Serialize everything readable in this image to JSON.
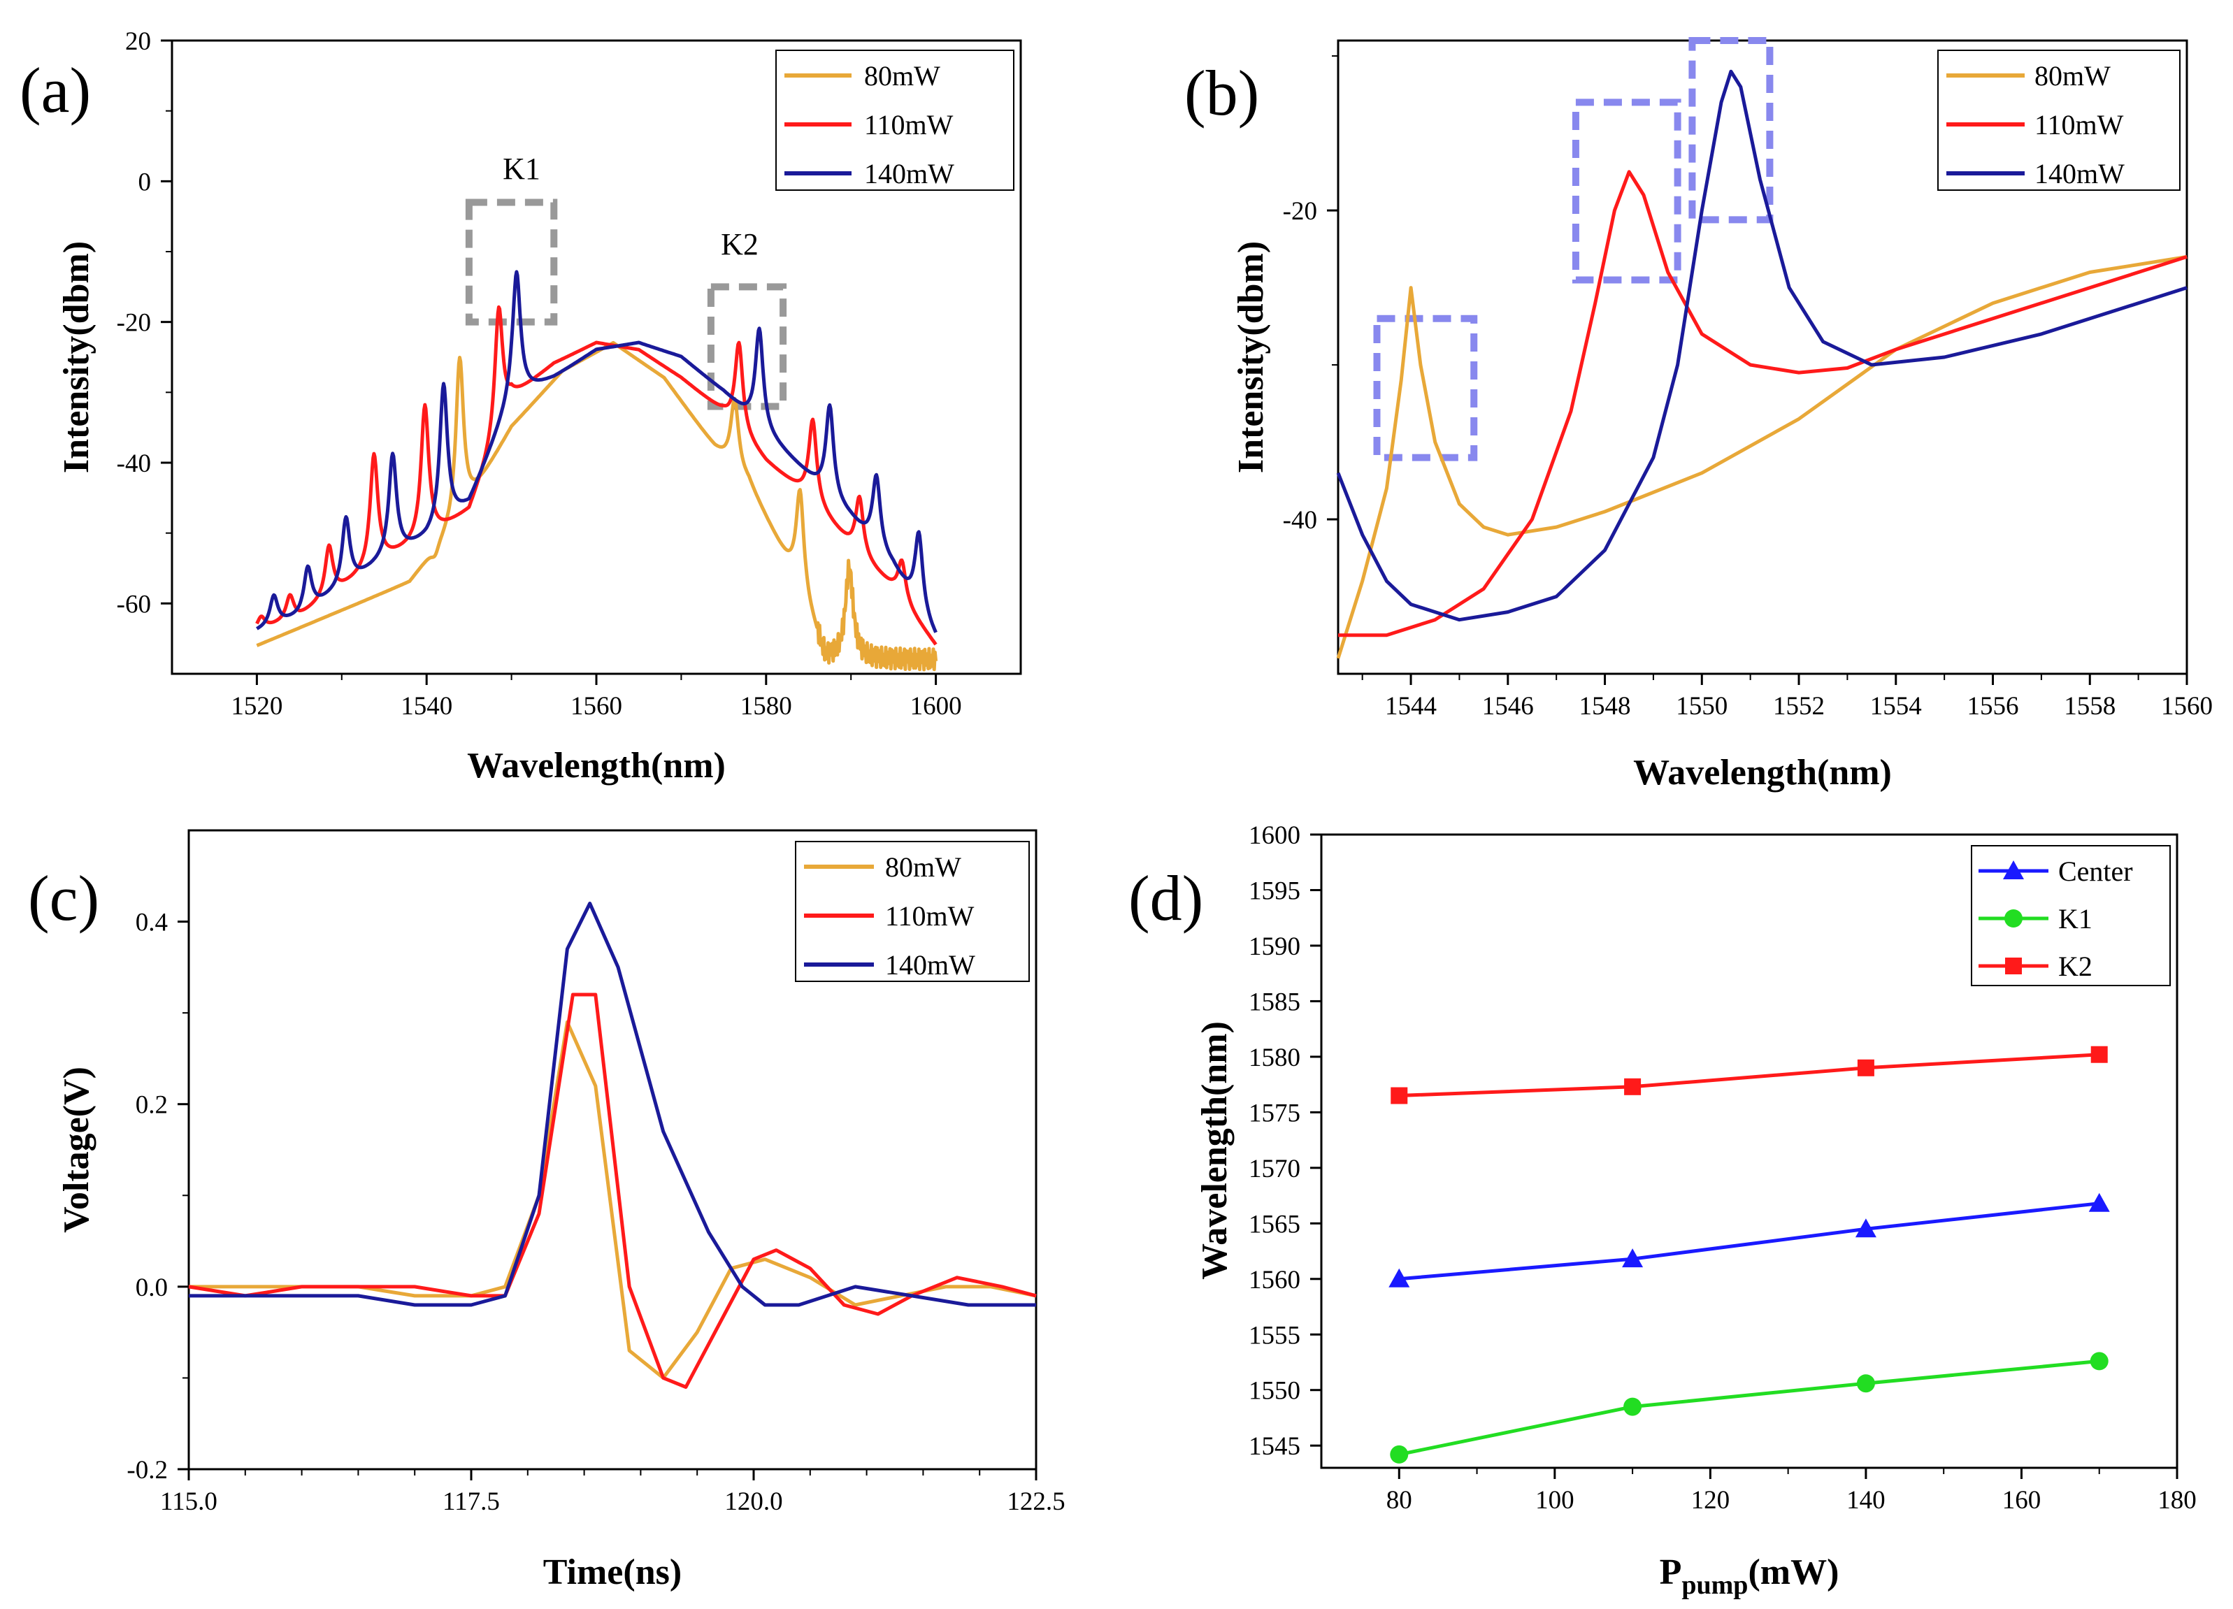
{
  "colors": {
    "p80": "#e8a838",
    "p110": "#ff1a1a",
    "p140": "#1a1a99",
    "center": "#1a1aff",
    "k1": "#22dd22",
    "k2": "#ff1a1a",
    "box_gray": "#999999",
    "box_blue": "#8888ee"
  },
  "chart_data": [
    {
      "panel": "(a)",
      "type": "line",
      "xlabel": "Wavelength(nm)",
      "ylabel": "Intensity(dbm)",
      "xlim": [
        1510,
        1610
      ],
      "ylim": [
        -70,
        20
      ],
      "xticks": [
        1520,
        1540,
        1560,
        1580,
        1600
      ],
      "yticks": [
        20,
        0,
        -20,
        -40,
        -60
      ],
      "legend": [
        "80mW",
        "110mW",
        "140mW"
      ],
      "legend_position": "top-right",
      "annotations": [
        {
          "text": "K1",
          "box": {
            "x": [
              1545,
              1555
            ],
            "y": [
              -20,
              -3
            ]
          }
        },
        {
          "text": "K2",
          "box": {
            "x": [
              1573.5,
              1582
            ],
            "y": [
              -32,
              -15
            ]
          }
        }
      ],
      "series": [
        {
          "name": "80mW",
          "envelope": [
            [
              1520,
              -66
            ],
            [
              1530,
              -61
            ],
            [
              1538,
              -57
            ],
            [
              1544,
              -48
            ],
            [
              1550,
              -35
            ],
            [
              1556,
              -27
            ],
            [
              1562,
              -23
            ],
            [
              1568,
              -28
            ],
            [
              1574,
              -38
            ],
            [
              1578,
              -43
            ],
            [
              1584,
              -58
            ],
            [
              1587,
              -68
            ],
            [
              1590,
              -68
            ],
            [
              1600,
              -68
            ]
          ],
          "peaks": [
            [
              1541,
              -54
            ],
            [
              1543.9,
              -25
            ],
            [
              1576.3,
              -31
            ],
            [
              1584,
              -44
            ],
            [
              1589.8,
              -55
            ]
          ]
        },
        {
          "name": "110mW",
          "envelope": [
            [
              1520,
              -64
            ],
            [
              1525,
              -62
            ],
            [
              1530,
              -58
            ],
            [
              1535,
              -54
            ],
            [
              1540,
              -51
            ],
            [
              1545,
              -47
            ],
            [
              1550,
              -31
            ],
            [
              1555,
              -26
            ],
            [
              1560,
              -23
            ],
            [
              1565,
              -24
            ],
            [
              1570,
              -28
            ],
            [
              1575,
              -33
            ],
            [
              1580,
              -40
            ],
            [
              1585,
              -45
            ],
            [
              1590,
              -52
            ],
            [
              1595,
              -58
            ],
            [
              1600,
              -66
            ]
          ],
          "peaks": [
            [
              1520.5,
              -62
            ],
            [
              1523.9,
              -59
            ],
            [
              1528.5,
              -52
            ],
            [
              1533.8,
              -39
            ],
            [
              1539.8,
              -32
            ],
            [
              1548.5,
              -18
            ],
            [
              1576.8,
              -23
            ],
            [
              1585.5,
              -34
            ],
            [
              1591,
              -45
            ],
            [
              1596,
              -54
            ]
          ]
        },
        {
          "name": "140mW",
          "envelope": [
            [
              1520,
              -64
            ],
            [
              1525,
              -62
            ],
            [
              1530,
              -58
            ],
            [
              1535,
              -54
            ],
            [
              1540,
              -51
            ],
            [
              1545,
              -46
            ],
            [
              1550,
              -31
            ],
            [
              1555,
              -28
            ],
            [
              1560,
              -24
            ],
            [
              1565,
              -23
            ],
            [
              1570,
              -25
            ],
            [
              1575,
              -30
            ],
            [
              1580,
              -36
            ],
            [
              1585,
              -42
            ],
            [
              1590,
              -48
            ],
            [
              1595,
              -55
            ],
            [
              1600,
              -65
            ]
          ],
          "peaks": [
            [
              1522,
              -59
            ],
            [
              1526,
              -55
            ],
            [
              1530.5,
              -48
            ],
            [
              1536,
              -39
            ],
            [
              1542,
              -29
            ],
            [
              1550.6,
              -13
            ],
            [
              1579.2,
              -21
            ],
            [
              1587.5,
              -32
            ],
            [
              1593,
              -42
            ],
            [
              1598,
              -50
            ]
          ]
        }
      ]
    },
    {
      "panel": "(b)",
      "type": "line",
      "xlabel": "Wavelength(nm)",
      "ylabel": "Intensity(dbm)",
      "xlim": [
        1542.5,
        1560
      ],
      "ylim": [
        -50,
        -9
      ],
      "xticks": [
        1544,
        1546,
        1548,
        1550,
        1552,
        1554,
        1556,
        1558,
        1560
      ],
      "yticks": [
        -20,
        -40
      ],
      "legend": [
        "80mW",
        "110mW",
        "140mW"
      ],
      "legend_position": "top-right",
      "annotations": [
        {
          "box": {
            "x": [
              1543.3,
              1545.3
            ],
            "y": [
              -36,
              -27
            ]
          }
        },
        {
          "box": {
            "x": [
              1547.4,
              1549.5
            ],
            "y": [
              -24.5,
              -13
            ]
          }
        },
        {
          "box": {
            "x": [
              1549.8,
              1551.4
            ],
            "y": [
              -20.6,
              -9
            ]
          }
        }
      ],
      "series": [
        {
          "name": "80mW",
          "x": [
            1542.5,
            1543,
            1543.5,
            1543.8,
            1544,
            1544.2,
            1544.5,
            1545,
            1545.5,
            1546,
            1547,
            1548,
            1550,
            1552,
            1554,
            1556,
            1558,
            1560
          ],
          "y": [
            -49,
            -44,
            -38,
            -31,
            -25,
            -30,
            -35,
            -39,
            -40.5,
            -41,
            -40.5,
            -39.5,
            -37,
            -33.5,
            -29,
            -26,
            -24,
            -23
          ]
        },
        {
          "name": "110mW",
          "x": [
            1542.5,
            1543.5,
            1544.5,
            1545.5,
            1546.5,
            1547.3,
            1547.8,
            1548.2,
            1548.5,
            1548.8,
            1549.3,
            1550,
            1551,
            1552,
            1553,
            1554,
            1556,
            1558,
            1560
          ],
          "y": [
            -47.5,
            -47.5,
            -46.5,
            -44.5,
            -40,
            -33,
            -26,
            -20,
            -17.5,
            -19,
            -24,
            -28,
            -30,
            -30.5,
            -30.2,
            -29,
            -27,
            -25,
            -23
          ]
        },
        {
          "name": "140mW",
          "x": [
            1542.5,
            1543,
            1543.5,
            1544,
            1545,
            1546,
            1547,
            1548,
            1549,
            1549.5,
            1550,
            1550.4,
            1550.6,
            1550.8,
            1551.2,
            1551.8,
            1552.5,
            1553.5,
            1555,
            1557,
            1560
          ],
          "y": [
            -37,
            -41,
            -44,
            -45.5,
            -46.5,
            -46,
            -45,
            -42,
            -36,
            -30,
            -20,
            -13,
            -11,
            -12,
            -18,
            -25,
            -28.5,
            -30,
            -29.5,
            -28,
            -25
          ]
        }
      ]
    },
    {
      "panel": "(c)",
      "type": "line",
      "xlabel": "Time(ns)",
      "ylabel": "Voltage(V)",
      "xlim": [
        115,
        122.5
      ],
      "ylim": [
        -0.2,
        0.5
      ],
      "xticks": [
        "115.0",
        "117.5",
        "120.0",
        "122.5"
      ],
      "yticks": [
        "0.4",
        "0.2",
        "0.0",
        "-0.2"
      ],
      "legend": [
        "80mW",
        "110mW",
        "140mW"
      ],
      "legend_position": "top-right",
      "series": [
        {
          "name": "80mW",
          "x": [
            115,
            115.5,
            116,
            116.5,
            117,
            117.5,
            117.8,
            118.1,
            118.35,
            118.6,
            118.9,
            119.2,
            119.5,
            119.8,
            120.1,
            120.5,
            120.9,
            121.3,
            121.7,
            122.1,
            122.5
          ],
          "y": [
            0,
            0,
            0,
            0,
            -0.01,
            -0.01,
            0,
            0.1,
            0.29,
            0.22,
            -0.07,
            -0.1,
            -0.05,
            0.02,
            0.03,
            0.01,
            -0.02,
            -0.01,
            0,
            0,
            -0.01
          ]
        },
        {
          "name": "110mW",
          "x": [
            115,
            115.5,
            116,
            116.5,
            117,
            117.5,
            117.8,
            118.1,
            118.4,
            118.6,
            118.9,
            119.2,
            119.4,
            119.7,
            120,
            120.2,
            120.5,
            120.8,
            121.1,
            121.4,
            121.8,
            122.2,
            122.5
          ],
          "y": [
            0,
            -0.01,
            0,
            0,
            0,
            -0.01,
            -0.01,
            0.08,
            0.32,
            0.32,
            0,
            -0.1,
            -0.11,
            -0.04,
            0.03,
            0.04,
            0.02,
            -0.02,
            -0.03,
            -0.01,
            0.01,
            0,
            -0.01
          ]
        },
        {
          "name": "140mW",
          "x": [
            115,
            115.5,
            116,
            116.5,
            117,
            117.5,
            117.8,
            118.1,
            118.35,
            118.55,
            118.8,
            119.2,
            119.6,
            119.9,
            120.1,
            120.4,
            120.9,
            121.4,
            121.9,
            122.2,
            122.5
          ],
          "y": [
            -0.01,
            -0.01,
            -0.01,
            -0.01,
            -0.02,
            -0.02,
            -0.01,
            0.1,
            0.37,
            0.42,
            0.35,
            0.17,
            0.06,
            0,
            -0.02,
            -0.02,
            0,
            -0.01,
            -0.02,
            -0.02,
            -0.02
          ]
        }
      ]
    },
    {
      "panel": "(d)",
      "type": "line",
      "xlabel_main": "P",
      "xlabel_sub": "pump",
      "xlabel_unit": "(mW)",
      "ylabel": "Wavelength(nm)",
      "xlim": [
        70,
        180
      ],
      "ylim": [
        1543,
        1600
      ],
      "xticks": [
        80,
        100,
        120,
        140,
        160,
        180
      ],
      "yticks": [
        1545,
        1550,
        1555,
        1560,
        1565,
        1570,
        1575,
        1580,
        1585,
        1590,
        1595,
        1600
      ],
      "legend": [
        "Center",
        "K1",
        "K2"
      ],
      "legend_position": "top-right",
      "series": [
        {
          "name": "Center",
          "marker": "triangle",
          "x": [
            80,
            110,
            140,
            170
          ],
          "y": [
            1560,
            1561.8,
            1564.5,
            1566.8
          ]
        },
        {
          "name": "K1",
          "marker": "circle",
          "x": [
            80,
            110,
            140,
            170
          ],
          "y": [
            1544.2,
            1548.5,
            1550.6,
            1552.6
          ]
        },
        {
          "name": "K2",
          "marker": "square",
          "x": [
            80,
            110,
            140,
            170
          ],
          "y": [
            1576.5,
            1577.3,
            1579,
            1580.2
          ]
        }
      ]
    }
  ]
}
